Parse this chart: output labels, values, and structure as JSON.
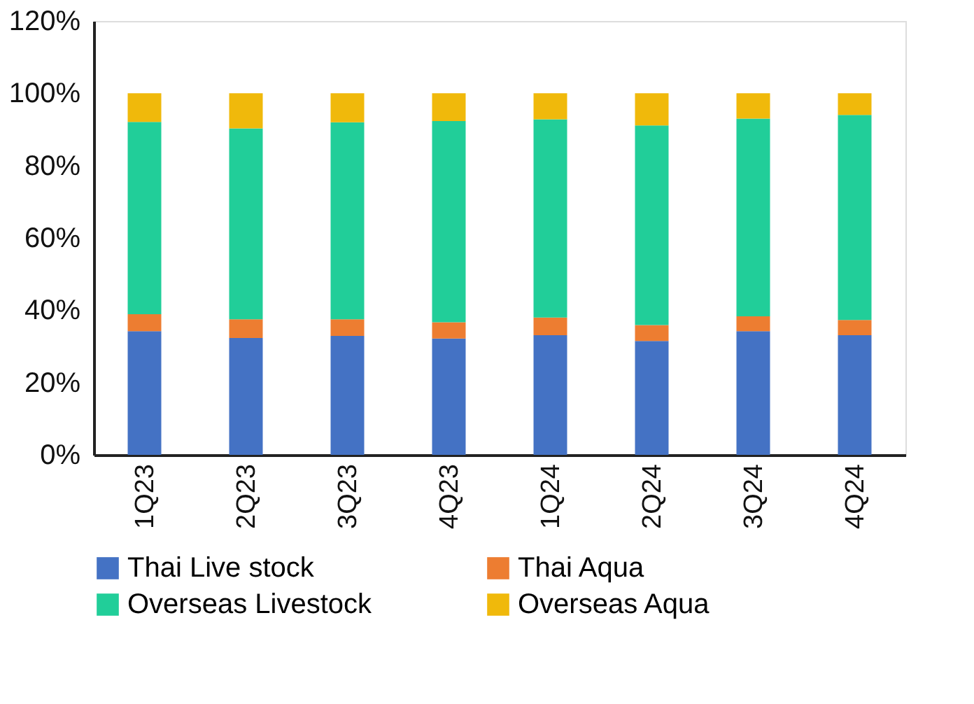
{
  "chart_data": {
    "type": "bar",
    "stacked": true,
    "categories": [
      "1Q23",
      "2Q23",
      "3Q23",
      "4Q23",
      "1Q24",
      "2Q24",
      "3Q24",
      "4Q24"
    ],
    "series": [
      {
        "name": "Thai Live stock",
        "color": "#4472c4",
        "values": [
          34.2,
          32.3,
          32.9,
          32.2,
          33.1,
          31.5,
          34.2,
          33.1
        ]
      },
      {
        "name": "Thai Aqua",
        "color": "#ed7d31",
        "values": [
          4.7,
          5.2,
          4.6,
          4.5,
          4.9,
          4.4,
          4.1,
          4.2
        ]
      },
      {
        "name": "Overseas Livestock",
        "color": "#21ce99",
        "values": [
          53.2,
          52.8,
          54.5,
          55.6,
          54.8,
          55.2,
          54.7,
          56.7
        ]
      },
      {
        "name": "Overseas Aqua",
        "color": "#f0b90b",
        "values": [
          7.9,
          9.7,
          8.0,
          7.7,
          7.2,
          8.9,
          7.0,
          6.0
        ]
      }
    ],
    "ylim": [
      0,
      120
    ],
    "yticks": [
      {
        "value": 0,
        "label": "0%"
      },
      {
        "value": 20,
        "label": "20%"
      },
      {
        "value": 40,
        "label": "40%"
      },
      {
        "value": 60,
        "label": "60%"
      },
      {
        "value": 80,
        "label": "80%"
      },
      {
        "value": 100,
        "label": "100%"
      },
      {
        "value": 120,
        "label": "120%"
      }
    ],
    "grid": false,
    "legend": "bottom"
  }
}
